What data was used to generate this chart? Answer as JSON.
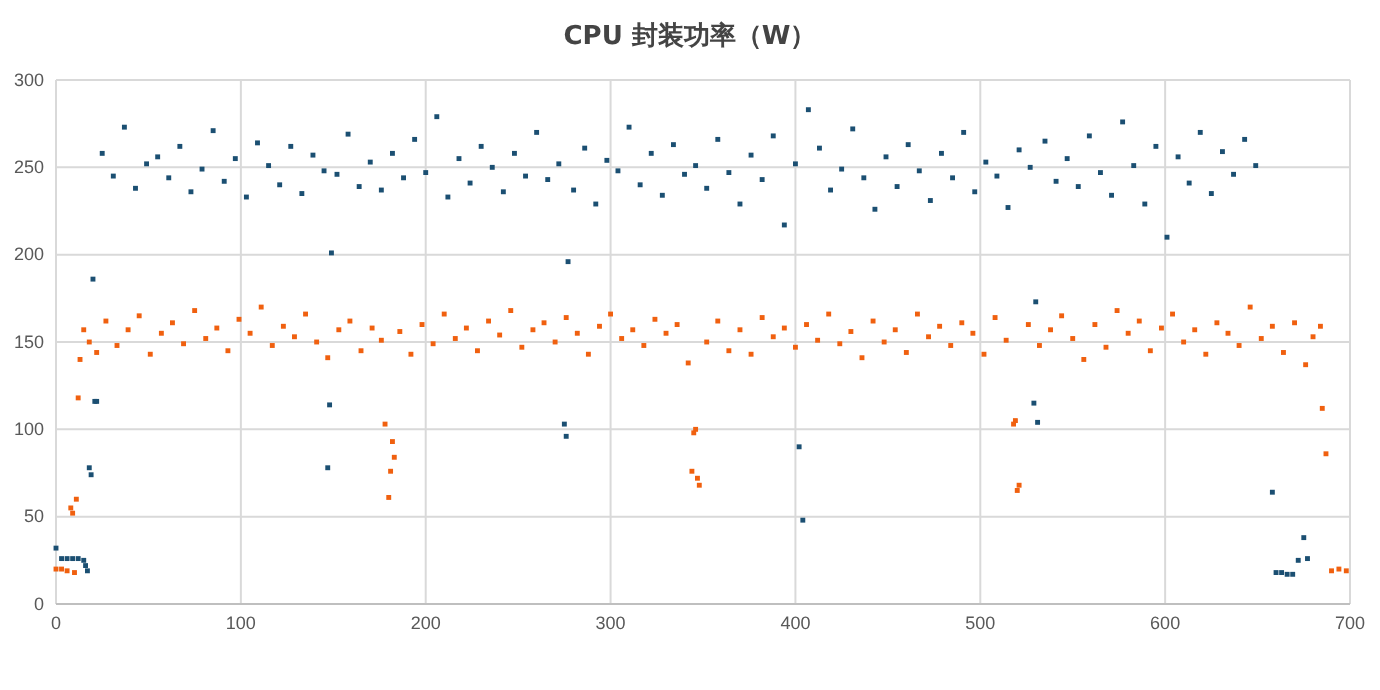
{
  "chart_data": {
    "type": "scatter",
    "title": "CPU 封装功率（W）",
    "xlim": [
      0,
      700
    ],
    "xticks": [
      0,
      100,
      200,
      300,
      400,
      500,
      600,
      700
    ],
    "ylim": [
      0,
      300
    ],
    "yticks": [
      0,
      50,
      100,
      150,
      200,
      250,
      300
    ],
    "grid": true,
    "marker": "square",
    "series": [
      {
        "color": "#1b4f72",
        "x": [
          0,
          3,
          6,
          9,
          12,
          15,
          16,
          17,
          18,
          19,
          20,
          21,
          22,
          25,
          31,
          37,
          43,
          49,
          55,
          61,
          67,
          73,
          79,
          85,
          91,
          97,
          103,
          109,
          115,
          121,
          127,
          133,
          139,
          145,
          147,
          148,
          149,
          152,
          158,
          164,
          170,
          176,
          182,
          188,
          194,
          200,
          206,
          212,
          218,
          224,
          230,
          236,
          242,
          248,
          254,
          260,
          266,
          272,
          275,
          276,
          277,
          280,
          286,
          292,
          298,
          304,
          310,
          316,
          322,
          328,
          334,
          340,
          346,
          352,
          358,
          364,
          370,
          376,
          382,
          388,
          394,
          400,
          402,
          404,
          407,
          413,
          419,
          425,
          431,
          437,
          443,
          449,
          455,
          461,
          467,
          473,
          479,
          485,
          491,
          497,
          503,
          509,
          515,
          521,
          527,
          529,
          530,
          531,
          535,
          541,
          547,
          553,
          559,
          565,
          571,
          577,
          583,
          589,
          595,
          601,
          607,
          613,
          619,
          625,
          631,
          637,
          643,
          649,
          658,
          660,
          663,
          666,
          669,
          672,
          675,
          677
        ],
        "values": [
          32,
          26,
          26,
          26,
          26,
          25,
          22,
          19,
          78,
          74,
          186,
          116,
          116,
          258,
          245,
          273,
          238,
          252,
          256,
          244,
          262,
          236,
          249,
          271,
          242,
          255,
          233,
          264,
          251,
          240,
          262,
          235,
          257,
          248,
          78,
          114,
          201,
          246,
          269,
          239,
          253,
          237,
          258,
          244,
          266,
          247,
          279,
          233,
          255,
          241,
          262,
          250,
          236,
          258,
          245,
          270,
          243,
          252,
          103,
          96,
          196,
          237,
          261,
          229,
          254,
          248,
          273,
          240,
          258,
          234,
          263,
          246,
          251,
          238,
          266,
          247,
          229,
          257,
          243,
          268,
          217,
          252,
          90,
          48,
          283,
          261,
          237,
          249,
          272,
          244,
          226,
          256,
          239,
          263,
          248,
          231,
          258,
          244,
          270,
          236,
          253,
          245,
          227,
          260,
          250,
          115,
          173,
          104,
          265,
          242,
          255,
          239,
          268,
          247,
          234,
          276,
          251,
          229,
          262,
          210,
          256,
          241,
          270,
          235,
          259,
          246,
          266,
          251,
          64,
          18,
          18,
          17,
          17,
          25,
          38,
          26
        ]
      },
      {
        "color": "#f0600f",
        "x": [
          0,
          3,
          6,
          8,
          9,
          10,
          11,
          12,
          13,
          15,
          18,
          22,
          27,
          33,
          39,
          45,
          51,
          57,
          63,
          69,
          75,
          81,
          87,
          93,
          99,
          105,
          111,
          117,
          123,
          129,
          135,
          141,
          147,
          153,
          159,
          165,
          171,
          176,
          178,
          180,
          181,
          182,
          183,
          186,
          192,
          198,
          204,
          210,
          216,
          222,
          228,
          234,
          240,
          246,
          252,
          258,
          264,
          270,
          276,
          282,
          288,
          294,
          300,
          306,
          312,
          318,
          324,
          330,
          336,
          342,
          344,
          345,
          346,
          347,
          348,
          352,
          358,
          364,
          370,
          376,
          382,
          388,
          394,
          400,
          406,
          412,
          418,
          424,
          430,
          436,
          442,
          448,
          454,
          460,
          466,
          472,
          478,
          484,
          490,
          496,
          502,
          508,
          514,
          518,
          519,
          520,
          521,
          526,
          532,
          538,
          544,
          550,
          556,
          562,
          568,
          574,
          580,
          586,
          592,
          598,
          604,
          610,
          616,
          622,
          628,
          634,
          640,
          646,
          652,
          658,
          664,
          670,
          676,
          680,
          684,
          685,
          687,
          690,
          694,
          698
        ],
        "values": [
          20,
          20,
          19,
          55,
          52,
          18,
          60,
          118,
          140,
          157,
          150,
          144,
          162,
          148,
          157,
          165,
          143,
          155,
          161,
          149,
          168,
          152,
          158,
          145,
          163,
          155,
          170,
          148,
          159,
          153,
          166,
          150,
          141,
          157,
          162,
          145,
          158,
          151,
          103,
          61,
          76,
          93,
          84,
          156,
          143,
          160,
          149,
          166,
          152,
          158,
          145,
          162,
          154,
          168,
          147,
          157,
          161,
          150,
          164,
          155,
          143,
          159,
          166,
          152,
          157,
          148,
          163,
          155,
          160,
          138,
          76,
          98,
          100,
          72,
          68,
          150,
          162,
          145,
          157,
          143,
          164,
          153,
          158,
          147,
          160,
          151,
          166,
          149,
          156,
          141,
          162,
          150,
          157,
          144,
          166,
          153,
          159,
          148,
          161,
          155,
          143,
          164,
          151,
          103,
          105,
          65,
          68,
          160,
          148,
          157,
          165,
          152,
          140,
          160,
          147,
          168,
          155,
          162,
          145,
          158,
          166,
          150,
          157,
          143,
          161,
          155,
          148,
          170,
          152,
          159,
          144,
          161,
          137,
          153,
          159,
          112,
          86,
          19,
          20,
          19
        ]
      }
    ]
  }
}
